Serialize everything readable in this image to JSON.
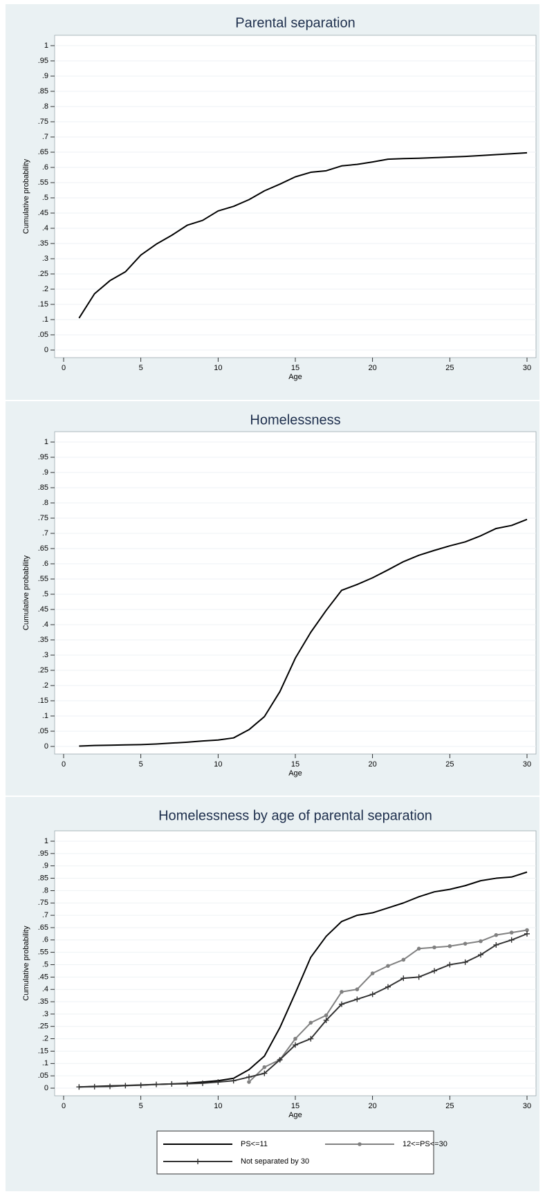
{
  "chart_data": [
    {
      "type": "line",
      "title": "Parental separation",
      "x_label": "Age",
      "y_label": "Cumulative probability",
      "x": [
        1,
        2,
        3,
        4,
        5,
        6,
        7,
        8,
        9,
        10,
        11,
        12,
        13,
        14,
        15,
        16,
        17,
        18,
        19,
        20,
        21,
        22,
        23,
        24,
        25,
        26,
        27,
        28,
        29,
        30
      ],
      "values": [
        0.105,
        0.185,
        0.228,
        0.257,
        0.312,
        0.348,
        0.377,
        0.41,
        0.426,
        0.457,
        0.472,
        0.494,
        0.523,
        0.545,
        0.569,
        0.584,
        0.589,
        0.605,
        0.61,
        0.618,
        0.627,
        0.629,
        0.63,
        0.632,
        0.634,
        0.636,
        0.639,
        0.642,
        0.645,
        0.648
      ],
      "color": "#000000",
      "xlim": [
        0,
        30
      ],
      "xticks": [
        0,
        5,
        10,
        15,
        20,
        25,
        30
      ],
      "ylim": [
        0,
        1
      ],
      "yticks": [
        0,
        {
          "value": 0.05,
          "label": ".05"
        },
        {
          "value": 0.1,
          "label": ".1"
        },
        {
          "value": 0.15,
          "label": ".15"
        },
        {
          "value": 0.2,
          "label": ".2"
        },
        {
          "value": 0.25,
          "label": ".25"
        },
        {
          "value": 0.3,
          "label": ".3"
        },
        {
          "value": 0.35,
          "label": ".35"
        },
        {
          "value": 0.4,
          "label": ".4"
        },
        {
          "value": 0.45,
          "label": ".45"
        },
        {
          "value": 0.5,
          "label": ".5"
        },
        {
          "value": 0.55,
          "label": ".55"
        },
        {
          "value": 0.6,
          "label": ".6"
        },
        {
          "value": 0.65,
          "label": ".65"
        },
        {
          "value": 0.7,
          "label": ".7"
        },
        {
          "value": 0.75,
          "label": ".75"
        },
        {
          "value": 0.8,
          "label": ".8"
        },
        {
          "value": 0.85,
          "label": ".85"
        },
        {
          "value": 0.9,
          "label": ".9"
        },
        {
          "value": 0.95,
          "label": ".95"
        },
        1
      ],
      "grid": true
    },
    {
      "type": "line",
      "title": "Homelessness",
      "x_label": "Age",
      "y_label": "Cumulative probability",
      "x": [
        1,
        2,
        3,
        4,
        5,
        6,
        7,
        8,
        9,
        10,
        11,
        12,
        13,
        14,
        15,
        16,
        17,
        18,
        19,
        20,
        21,
        22,
        23,
        24,
        25,
        26,
        27,
        28,
        29,
        30
      ],
      "values": [
        0.001,
        0.003,
        0.004,
        0.005,
        0.006,
        0.008,
        0.011,
        0.014,
        0.018,
        0.021,
        0.028,
        0.055,
        0.098,
        0.18,
        0.29,
        0.375,
        0.447,
        0.513,
        0.532,
        0.554,
        0.58,
        0.607,
        0.628,
        0.644,
        0.659,
        0.672,
        0.692,
        0.716,
        0.726,
        0.746
      ],
      "color": "#000000",
      "xlim": [
        0,
        30
      ],
      "xticks": [
        0,
        5,
        10,
        15,
        20,
        25,
        30
      ],
      "ylim": [
        0,
        1
      ],
      "yticks": [
        0,
        {
          "value": 0.05,
          "label": ".05"
        },
        {
          "value": 0.1,
          "label": ".1"
        },
        {
          "value": 0.15,
          "label": ".15"
        },
        {
          "value": 0.2,
          "label": ".2"
        },
        {
          "value": 0.25,
          "label": ".25"
        },
        {
          "value": 0.3,
          "label": ".3"
        },
        {
          "value": 0.35,
          "label": ".35"
        },
        {
          "value": 0.4,
          "label": ".4"
        },
        {
          "value": 0.45,
          "label": ".45"
        },
        {
          "value": 0.5,
          "label": ".5"
        },
        {
          "value": 0.55,
          "label": ".55"
        },
        {
          "value": 0.6,
          "label": ".6"
        },
        {
          "value": 0.65,
          "label": ".65"
        },
        {
          "value": 0.7,
          "label": ".7"
        },
        {
          "value": 0.75,
          "label": ".75"
        },
        {
          "value": 0.8,
          "label": ".8"
        },
        {
          "value": 0.85,
          "label": ".85"
        },
        {
          "value": 0.9,
          "label": ".9"
        },
        {
          "value": 0.95,
          "label": ".95"
        },
        1
      ],
      "grid": true
    },
    {
      "type": "line",
      "title": "Homelessness by age of parental separation",
      "x_label": "Age",
      "y_label": "Cumulative probability",
      "x": [
        1,
        2,
        3,
        4,
        5,
        6,
        7,
        8,
        9,
        10,
        11,
        12,
        13,
        14,
        15,
        16,
        17,
        18,
        19,
        20,
        21,
        22,
        23,
        24,
        25,
        26,
        27,
        28,
        29,
        30
      ],
      "series": [
        {
          "name": "PS<=11",
          "color": "#000000",
          "marker": "none",
          "values": [
            0.005,
            0.007,
            0.009,
            0.011,
            0.013,
            0.015,
            0.017,
            0.02,
            0.025,
            0.03,
            0.04,
            0.075,
            0.13,
            0.245,
            0.385,
            0.53,
            0.615,
            0.675,
            0.7,
            0.71,
            0.73,
            0.75,
            0.775,
            0.795,
            0.805,
            0.82,
            0.84,
            0.85,
            0.855,
            0.875
          ]
        },
        {
          "name": "12<=PS<=30",
          "color": "#808080",
          "marker": "circle",
          "values": [
            null,
            null,
            null,
            null,
            null,
            null,
            null,
            null,
            null,
            null,
            null,
            0.025,
            0.085,
            0.115,
            0.2,
            0.265,
            0.295,
            0.39,
            0.4,
            0.465,
            0.495,
            0.52,
            0.565,
            0.57,
            0.575,
            0.585,
            0.595,
            0.62,
            0.63,
            0.64
          ]
        },
        {
          "name": "Not separated by 30",
          "color": "#333333",
          "marker": "plus",
          "values": [
            0.005,
            0.006,
            0.007,
            0.01,
            0.012,
            0.015,
            0.017,
            0.018,
            0.02,
            0.025,
            0.03,
            0.045,
            0.06,
            0.115,
            0.175,
            0.2,
            0.275,
            0.34,
            0.36,
            0.38,
            0.41,
            0.445,
            0.45,
            0.475,
            0.5,
            0.51,
            0.54,
            0.58,
            0.6,
            0.625
          ]
        }
      ],
      "legend": "bottom",
      "xlim": [
        0,
        30
      ],
      "xticks": [
        0,
        5,
        10,
        15,
        20,
        25,
        30
      ],
      "ylim": [
        0,
        1
      ],
      "yticks": [
        0,
        {
          "value": 0.05,
          "label": ".05"
        },
        {
          "value": 0.1,
          "label": ".1"
        },
        {
          "value": 0.15,
          "label": ".15"
        },
        {
          "value": 0.2,
          "label": ".2"
        },
        {
          "value": 0.25,
          "label": ".25"
        },
        {
          "value": 0.3,
          "label": ".3"
        },
        {
          "value": 0.35,
          "label": ".35"
        },
        {
          "value": 0.4,
          "label": ".4"
        },
        {
          "value": 0.45,
          "label": ".45"
        },
        {
          "value": 0.5,
          "label": ".5"
        },
        {
          "value": 0.55,
          "label": ".55"
        },
        {
          "value": 0.6,
          "label": ".6"
        },
        {
          "value": 0.65,
          "label": ".65"
        },
        {
          "value": 0.7,
          "label": ".7"
        },
        {
          "value": 0.75,
          "label": ".75"
        },
        {
          "value": 0.8,
          "label": ".8"
        },
        {
          "value": 0.85,
          "label": ".85"
        },
        {
          "value": 0.9,
          "label": ".9"
        },
        {
          "value": 0.95,
          "label": ".95"
        },
        1
      ],
      "grid": true
    }
  ]
}
